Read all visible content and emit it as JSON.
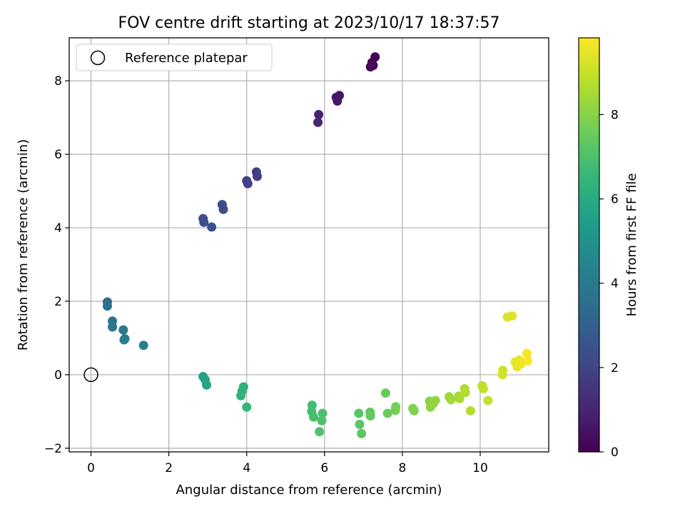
{
  "chart_data": {
    "type": "scatter",
    "title": "FOV centre drift starting at 2023/10/17 18:37:57",
    "xlabel": "Angular distance from reference (arcmin)",
    "ylabel": "Rotation from reference (arcmin)",
    "xlim": [
      -0.56,
      11.76
    ],
    "ylim": [
      -2.1,
      9.17
    ],
    "x_ticks": [
      0,
      2,
      4,
      6,
      8,
      10
    ],
    "y_ticks": [
      -2,
      0,
      2,
      4,
      6,
      8
    ],
    "grid": true,
    "legend": {
      "position": "top-left",
      "entries": [
        "Reference platepar"
      ]
    },
    "reference_point": {
      "x": 0,
      "y": 0,
      "marker": "open-circle",
      "label": "Reference platepar"
    },
    "colorbar": {
      "label": "Hours from first FF file",
      "range": [
        0,
        9.82
      ],
      "ticks": [
        0,
        2,
        4,
        6,
        8
      ],
      "colormap": "viridis",
      "colormap_stops": [
        "#440154",
        "#482878",
        "#3e4a89",
        "#31688e",
        "#26828e",
        "#1f9e89",
        "#35b779",
        "#6ece58",
        "#b5de2b",
        "#fde725"
      ]
    },
    "points": [
      {
        "x": 7.3,
        "y": 8.65,
        "c": 0.05
      },
      {
        "x": 7.22,
        "y": 8.5,
        "c": 0.1
      },
      {
        "x": 7.18,
        "y": 8.38,
        "c": 0.15
      },
      {
        "x": 7.25,
        "y": 8.42,
        "c": 0.2
      },
      {
        "x": 6.38,
        "y": 7.6,
        "c": 0.55
      },
      {
        "x": 6.3,
        "y": 7.55,
        "c": 0.6
      },
      {
        "x": 6.33,
        "y": 7.45,
        "c": 0.65
      },
      {
        "x": 5.85,
        "y": 7.08,
        "c": 0.95
      },
      {
        "x": 5.83,
        "y": 6.87,
        "c": 1.0
      },
      {
        "x": 4.25,
        "y": 5.52,
        "c": 1.75
      },
      {
        "x": 4.27,
        "y": 5.4,
        "c": 1.8
      },
      {
        "x": 4.0,
        "y": 5.28,
        "c": 1.9
      },
      {
        "x": 4.03,
        "y": 5.2,
        "c": 1.95
      },
      {
        "x": 3.37,
        "y": 4.63,
        "c": 2.2
      },
      {
        "x": 3.4,
        "y": 4.5,
        "c": 2.25
      },
      {
        "x": 2.88,
        "y": 4.25,
        "c": 2.4
      },
      {
        "x": 2.9,
        "y": 4.15,
        "c": 2.45
      },
      {
        "x": 3.1,
        "y": 4.02,
        "c": 2.5
      },
      {
        "x": 0.42,
        "y": 1.98,
        "c": 3.5
      },
      {
        "x": 0.42,
        "y": 1.87,
        "c": 3.55
      },
      {
        "x": 0.55,
        "y": 1.46,
        "c": 3.75
      },
      {
        "x": 0.55,
        "y": 1.3,
        "c": 3.8
      },
      {
        "x": 0.83,
        "y": 1.22,
        "c": 3.9
      },
      {
        "x": 0.87,
        "y": 0.98,
        "c": 4.0
      },
      {
        "x": 0.85,
        "y": 0.95,
        "c": 4.05
      },
      {
        "x": 1.35,
        "y": 0.8,
        "c": 4.25
      },
      {
        "x": 2.88,
        "y": -0.05,
        "c": 5.65
      },
      {
        "x": 2.93,
        "y": -0.13,
        "c": 5.7
      },
      {
        "x": 2.97,
        "y": -0.28,
        "c": 5.75
      },
      {
        "x": 3.92,
        "y": -0.33,
        "c": 6.25
      },
      {
        "x": 3.88,
        "y": -0.45,
        "c": 6.3
      },
      {
        "x": 3.85,
        "y": -0.57,
        "c": 6.35
      },
      {
        "x": 4.0,
        "y": -0.88,
        "c": 6.45
      },
      {
        "x": 5.68,
        "y": -0.83,
        "c": 6.8
      },
      {
        "x": 5.67,
        "y": -1.0,
        "c": 6.85
      },
      {
        "x": 5.72,
        "y": -1.15,
        "c": 6.9
      },
      {
        "x": 5.95,
        "y": -1.05,
        "c": 6.95
      },
      {
        "x": 5.93,
        "y": -1.25,
        "c": 7.0
      },
      {
        "x": 5.87,
        "y": -1.55,
        "c": 7.05
      },
      {
        "x": 6.88,
        "y": -1.05,
        "c": 7.2
      },
      {
        "x": 6.9,
        "y": -1.35,
        "c": 7.25
      },
      {
        "x": 6.95,
        "y": -1.6,
        "c": 7.3
      },
      {
        "x": 7.17,
        "y": -1.02,
        "c": 7.35
      },
      {
        "x": 7.18,
        "y": -1.12,
        "c": 7.4
      },
      {
        "x": 7.57,
        "y": -0.5,
        "c": 7.5
      },
      {
        "x": 7.62,
        "y": -1.05,
        "c": 7.55
      },
      {
        "x": 7.83,
        "y": -0.87,
        "c": 7.65
      },
      {
        "x": 7.82,
        "y": -0.97,
        "c": 7.7
      },
      {
        "x": 8.27,
        "y": -0.92,
        "c": 7.85
      },
      {
        "x": 8.3,
        "y": -0.98,
        "c": 7.9
      },
      {
        "x": 8.7,
        "y": -0.72,
        "c": 8.05
      },
      {
        "x": 8.72,
        "y": -0.88,
        "c": 8.1
      },
      {
        "x": 8.8,
        "y": -0.78,
        "c": 8.15
      },
      {
        "x": 8.85,
        "y": -0.7,
        "c": 8.2
      },
      {
        "x": 9.2,
        "y": -0.6,
        "c": 8.35
      },
      {
        "x": 9.25,
        "y": -0.68,
        "c": 8.4
      },
      {
        "x": 9.45,
        "y": -0.58,
        "c": 8.5
      },
      {
        "x": 9.47,
        "y": -0.65,
        "c": 8.55
      },
      {
        "x": 9.6,
        "y": -0.38,
        "c": 8.6
      },
      {
        "x": 9.62,
        "y": -0.48,
        "c": 8.65
      },
      {
        "x": 9.75,
        "y": -0.98,
        "c": 8.7
      },
      {
        "x": 10.05,
        "y": -0.3,
        "c": 8.85
      },
      {
        "x": 10.08,
        "y": -0.38,
        "c": 8.9
      },
      {
        "x": 10.2,
        "y": -0.7,
        "c": 8.95
      },
      {
        "x": 10.58,
        "y": 0.12,
        "c": 9.1
      },
      {
        "x": 10.57,
        "y": 0.0,
        "c": 9.15
      },
      {
        "x": 10.7,
        "y": 1.57,
        "c": 9.3
      },
      {
        "x": 10.82,
        "y": 1.6,
        "c": 9.35
      },
      {
        "x": 10.9,
        "y": 0.35,
        "c": 9.45
      },
      {
        "x": 10.95,
        "y": 0.22,
        "c": 9.5
      },
      {
        "x": 11.0,
        "y": 0.4,
        "c": 9.55
      },
      {
        "x": 11.05,
        "y": 0.3,
        "c": 9.6
      },
      {
        "x": 11.2,
        "y": 0.58,
        "c": 9.7
      },
      {
        "x": 11.22,
        "y": 0.38,
        "c": 9.75
      }
    ]
  }
}
